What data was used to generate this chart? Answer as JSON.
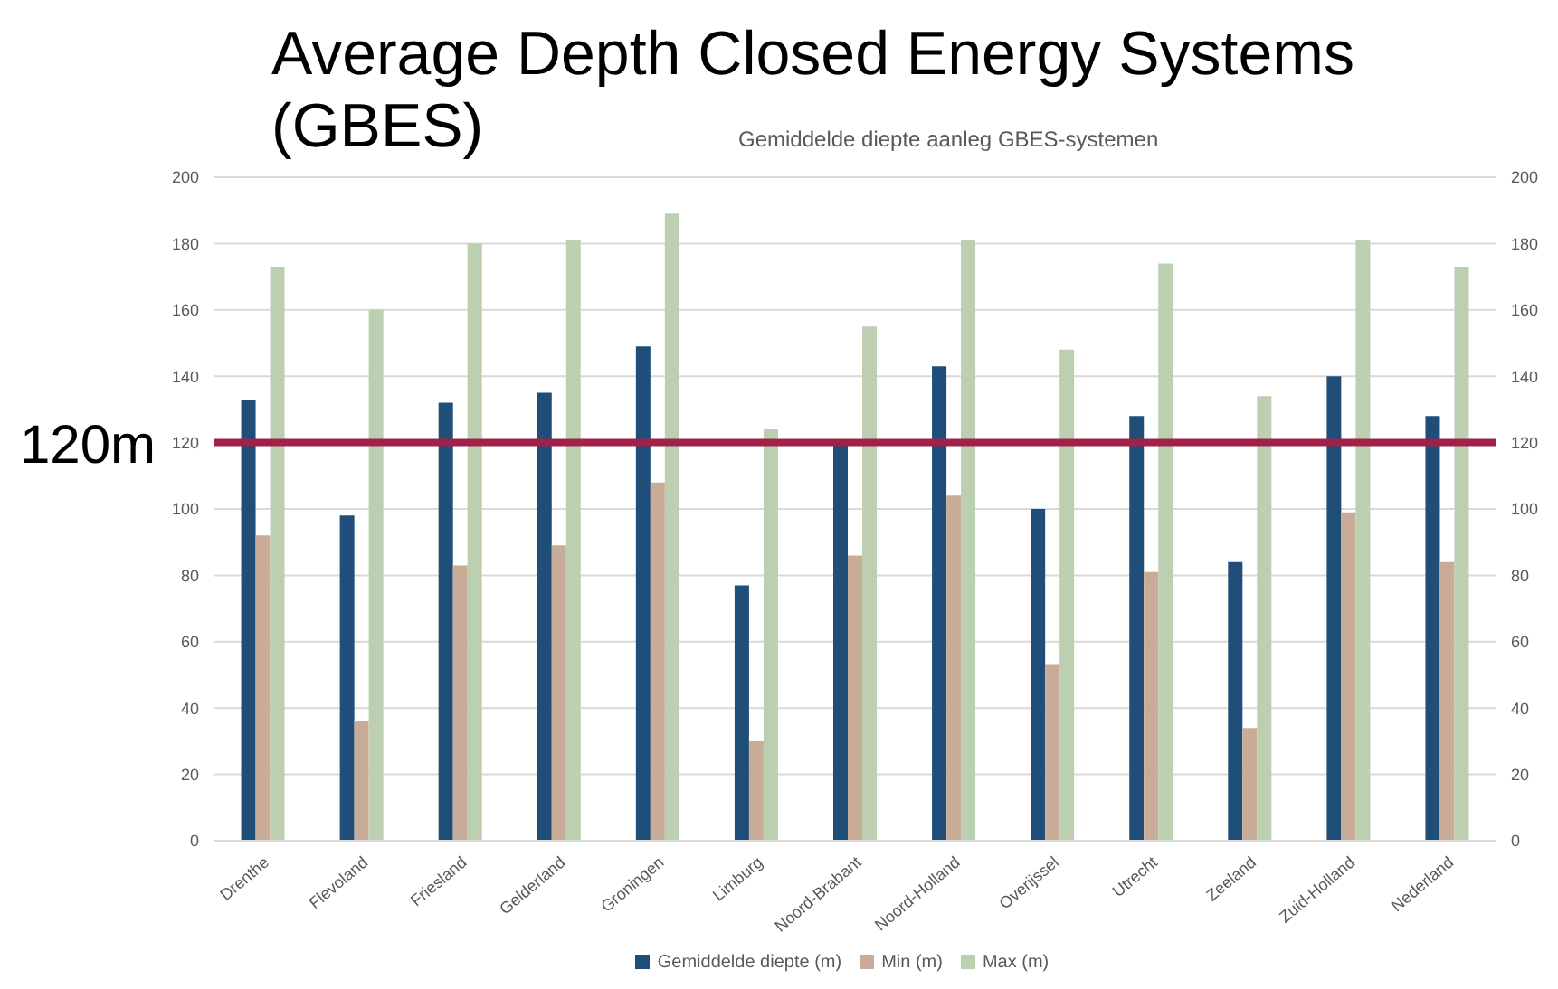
{
  "chart_data": {
    "type": "bar",
    "title": "Average Depth Closed Energy Systems (GBES)",
    "subtitle": "Gemiddelde diepte aanleg GBES-systemen",
    "categories": [
      "Drenthe",
      "Flevoland",
      "Friesland",
      "Gelderland",
      "Groningen",
      "Limburg",
      "Noord-Brabant",
      "Noord-Holland",
      "Overijssel",
      "Utrecht",
      "Zeeland",
      "Zuid-Holland",
      "Nederland"
    ],
    "series": [
      {
        "name": "Gemiddelde diepte (m)",
        "color": "#1f4e79",
        "values": [
          133,
          98,
          132,
          135,
          149,
          77,
          120,
          143,
          100,
          128,
          84,
          140,
          128
        ]
      },
      {
        "name": "Min (m)",
        "color": "#c9ac98",
        "values": [
          92,
          36,
          83,
          89,
          108,
          30,
          86,
          104,
          53,
          81,
          34,
          99,
          84
        ]
      },
      {
        "name": "Max (m)",
        "color": "#bccfb0",
        "values": [
          173,
          160,
          180,
          181,
          189,
          124,
          155,
          181,
          148,
          174,
          134,
          181,
          173
        ]
      }
    ],
    "ylim": [
      0,
      200
    ],
    "yticks": [
      0,
      20,
      40,
      60,
      80,
      100,
      120,
      140,
      160,
      180,
      200
    ],
    "y2lim": [
      0,
      200
    ],
    "y2ticks": [
      0,
      20,
      40,
      60,
      80,
      100,
      120,
      140,
      160,
      180,
      200
    ],
    "ref_lines": [
      {
        "axis": "y",
        "value": 120,
        "label": "120m",
        "color": "#a0224a"
      }
    ],
    "grid": "y",
    "legend": "bottom"
  }
}
